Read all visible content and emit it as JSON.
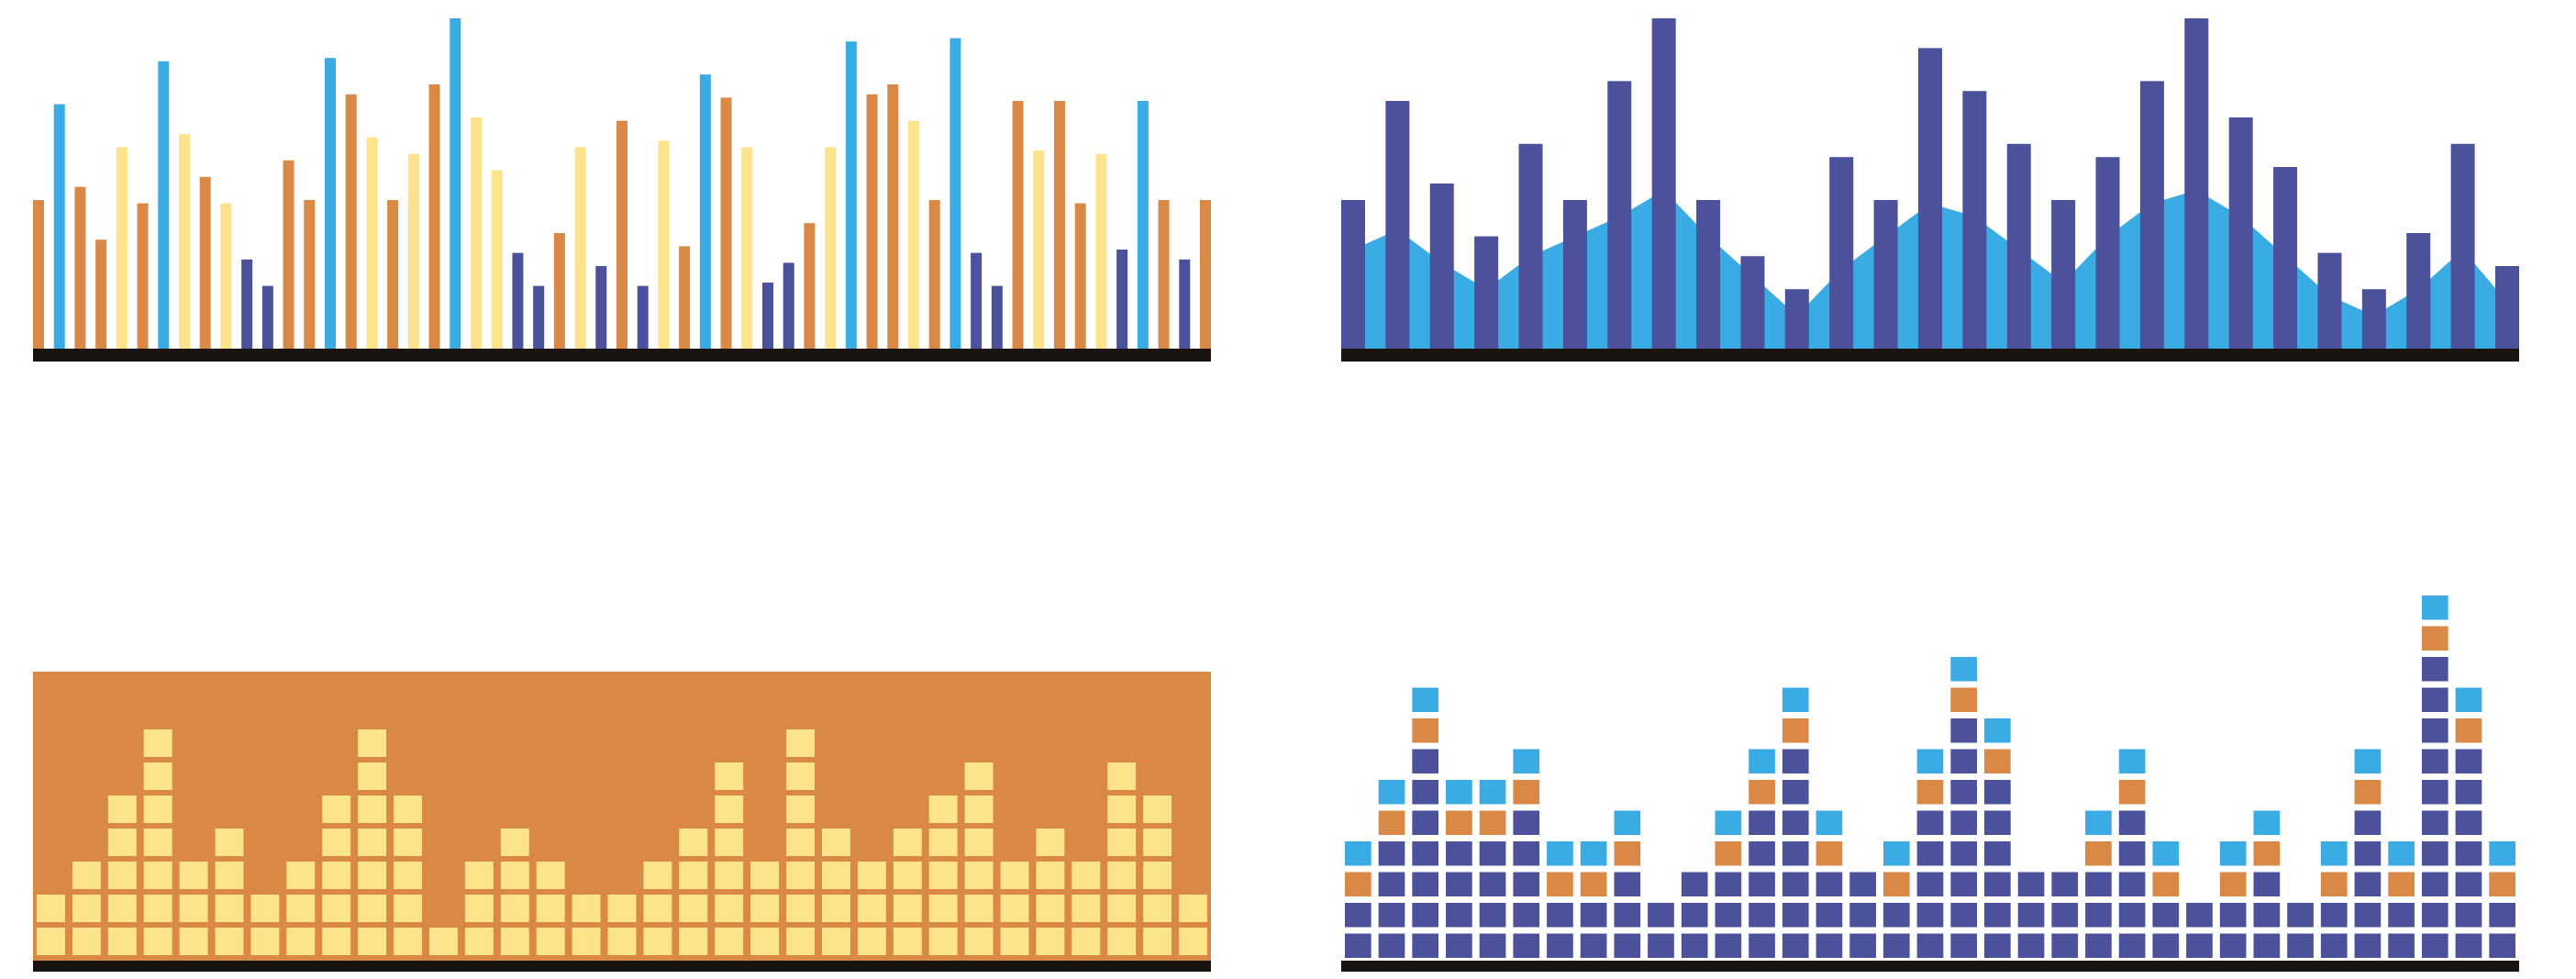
{
  "colors": {
    "background": "#ffffff",
    "baseline": "#1a1410",
    "sky_blue": "#3aace3",
    "orange": "#d98845",
    "pale_yellow": "#fde48c",
    "navy": "#4b519b",
    "panel_orange": "#d98845"
  },
  "panels": {
    "thin_bars": {
      "levels": [
        0.45,
        0.74,
        0.49,
        0.33,
        0.61,
        0.44,
        0.87,
        0.65,
        0.52,
        0.44,
        0.27,
        0.19,
        0.57,
        0.45,
        0.88,
        0.77,
        0.64,
        0.45,
        0.59,
        0.8,
        1.0,
        0.7,
        0.54,
        0.29,
        0.19,
        0.35,
        0.61,
        0.25,
        0.69,
        0.19,
        0.63,
        0.31,
        0.83,
        0.76,
        0.61,
        0.2,
        0.26,
        0.38,
        0.61,
        0.93,
        0.77,
        0.8,
        0.69,
        0.45,
        0.94,
        0.29,
        0.19,
        0.75,
        0.6,
        0.75,
        0.44,
        0.59,
        0.3,
        0.75,
        0.45,
        0.27,
        0.45
      ],
      "colors": [
        "orange",
        "sky_blue",
        "orange",
        "orange",
        "pale_yellow",
        "orange",
        "sky_blue",
        "pale_yellow",
        "orange",
        "pale_yellow",
        "navy",
        "navy",
        "orange",
        "orange",
        "sky_blue",
        "orange",
        "pale_yellow",
        "orange",
        "pale_yellow",
        "orange",
        "sky_blue",
        "pale_yellow",
        "pale_yellow",
        "navy",
        "navy",
        "orange",
        "pale_yellow",
        "navy",
        "orange",
        "navy",
        "pale_yellow",
        "orange",
        "sky_blue",
        "orange",
        "pale_yellow",
        "navy",
        "navy",
        "orange",
        "pale_yellow",
        "sky_blue",
        "orange",
        "orange",
        "pale_yellow",
        "orange",
        "sky_blue",
        "navy",
        "navy",
        "orange",
        "pale_yellow",
        "orange",
        "orange",
        "pale_yellow",
        "navy",
        "sky_blue",
        "orange",
        "navy",
        "orange"
      ]
    },
    "bars_with_wave": {
      "bar_levels": [
        0.45,
        0.75,
        0.5,
        0.34,
        0.62,
        0.45,
        0.81,
        1.0,
        0.45,
        0.28,
        0.18,
        0.58,
        0.45,
        0.91,
        0.78,
        0.62,
        0.45,
        0.58,
        0.81,
        1.0,
        0.7,
        0.55,
        0.29,
        0.18,
        0.35,
        0.62,
        0.25
      ],
      "wave_levels": [
        0.3,
        0.36,
        0.26,
        0.18,
        0.28,
        0.34,
        0.4,
        0.48,
        0.34,
        0.22,
        0.1,
        0.24,
        0.34,
        0.44,
        0.4,
        0.3,
        0.2,
        0.34,
        0.44,
        0.48,
        0.4,
        0.28,
        0.16,
        0.1,
        0.18,
        0.3,
        0.14
      ]
    },
    "block_meter": {
      "column_blocks": [
        2,
        3,
        5,
        7,
        3,
        4,
        2,
        3,
        5,
        7,
        5,
        1,
        3,
        4,
        3,
        2,
        2,
        3,
        4,
        6,
        3,
        7,
        4,
        3,
        4,
        5,
        6,
        3,
        4,
        3,
        6,
        5,
        2
      ]
    },
    "stacked_meter": {
      "column_blocks": [
        4,
        6,
        9,
        6,
        6,
        7,
        4,
        4,
        5,
        2,
        3,
        5,
        7,
        9,
        5,
        3,
        4,
        7,
        10,
        8,
        3,
        3,
        5,
        7,
        4,
        2,
        4,
        5,
        2,
        4,
        7,
        4,
        12,
        9,
        4
      ]
    }
  }
}
